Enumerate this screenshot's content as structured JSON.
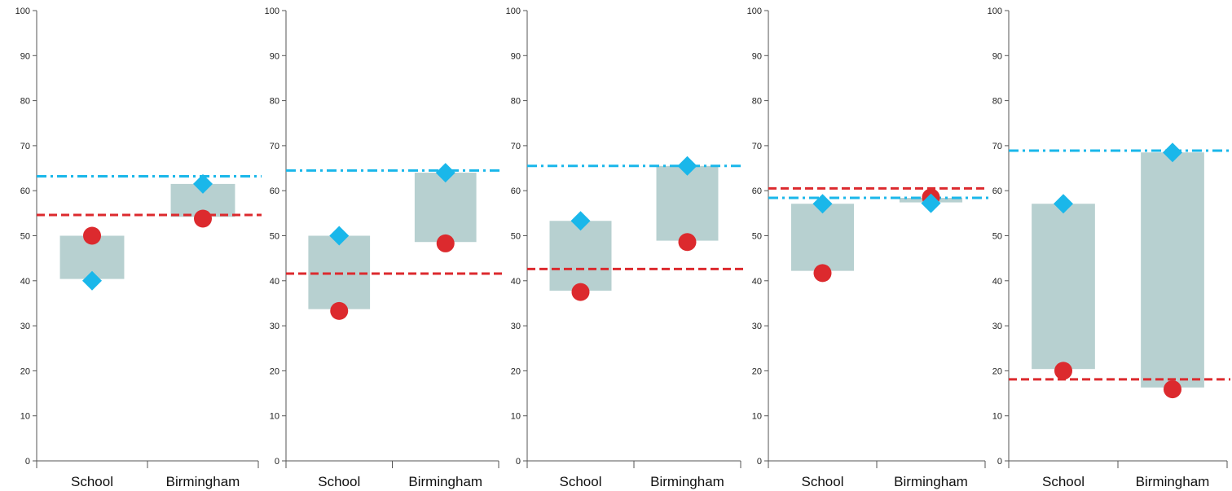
{
  "colors": {
    "range_bar": "#b7d0d0",
    "diamond": "#1ab7ea",
    "circle": "#dc2a2e",
    "dashed_line": "#dc2a2e",
    "dashdot_line": "#1ab7ea",
    "axis": "#555555"
  },
  "chart_data": [
    {
      "type": "range-bar",
      "categories": [
        "School",
        "Birmingham"
      ],
      "ylim": [
        0,
        100
      ],
      "yticks": [
        "0",
        "10",
        "20",
        "30",
        "40",
        "50",
        "60",
        "70",
        "80",
        "90",
        "100"
      ],
      "ranges": [
        [
          40.4,
          50
        ],
        [
          54.2,
          61.5
        ]
      ],
      "diamonds": [
        40,
        61.5
      ],
      "circles": [
        50,
        53.8
      ],
      "dashed_line": 54.6,
      "dashdot_line": 63.2
    },
    {
      "type": "range-bar",
      "categories": [
        "School",
        "Birmingham"
      ],
      "ylim": [
        0,
        100
      ],
      "yticks": [
        "0",
        "10",
        "20",
        "30",
        "40",
        "50",
        "60",
        "70",
        "80",
        "90",
        "100"
      ],
      "ranges": [
        [
          33.7,
          50
        ],
        [
          48.6,
          64
        ]
      ],
      "diamonds": [
        50,
        64
      ],
      "circles": [
        33.3,
        48.3
      ],
      "dashed_line": 41.6,
      "dashdot_line": 64.5
    },
    {
      "type": "range-bar",
      "categories": [
        "School",
        "Birmingham"
      ],
      "ylim": [
        0,
        100
      ],
      "yticks": [
        "0",
        "10",
        "20",
        "30",
        "40",
        "50",
        "60",
        "70",
        "80",
        "90",
        "100"
      ],
      "ranges": [
        [
          37.8,
          53.3
        ],
        [
          48.9,
          65.5
        ]
      ],
      "diamonds": [
        53.3,
        65.5
      ],
      "circles": [
        37.5,
        48.6
      ],
      "dashed_line": 42.6,
      "dashdot_line": 65.5
    },
    {
      "type": "range-bar",
      "categories": [
        "School",
        "Birmingham"
      ],
      "ylim": [
        0,
        100
      ],
      "yticks": [
        "0",
        "10",
        "20",
        "30",
        "40",
        "50",
        "60",
        "70",
        "80",
        "90",
        "100"
      ],
      "ranges": [
        [
          42.2,
          57.1
        ],
        [
          57.4,
          58.4
        ]
      ],
      "diamonds": [
        57.1,
        57.2
      ],
      "circles": [
        41.7,
        58.5
      ],
      "dashed_line": 60.5,
      "dashdot_line": 58.4
    },
    {
      "type": "range-bar",
      "categories": [
        "School",
        "Birmingham"
      ],
      "ylim": [
        0,
        100
      ],
      "yticks": [
        "0",
        "10",
        "20",
        "30",
        "40",
        "50",
        "60",
        "70",
        "80",
        "90",
        "100"
      ],
      "ranges": [
        [
          20.4,
          57.1
        ],
        [
          16.3,
          68.5
        ]
      ],
      "diamonds": [
        57.1,
        68.5
      ],
      "circles": [
        20,
        15.9
      ],
      "dashed_line": 18.1,
      "dashdot_line": 68.9
    }
  ]
}
